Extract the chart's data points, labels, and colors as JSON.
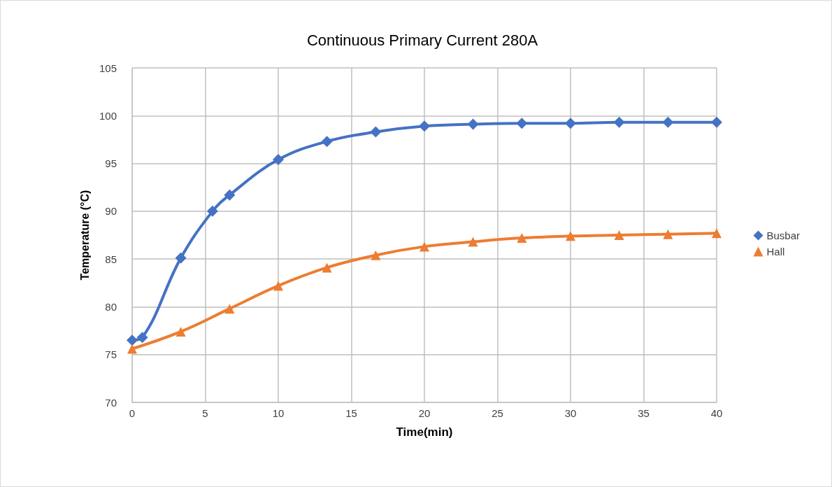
{
  "chart_data": {
    "type": "line",
    "title": "Continuous Primary Current 280A",
    "xlabel": "Time(min)",
    "ylabel": "Temperature (°C)",
    "series": [
      {
        "name": "Busbar",
        "color": "#4472c4",
        "marker": "diamond",
        "x": [
          0,
          0.7,
          3.33,
          5.5,
          6.67,
          10,
          13.33,
          16.67,
          20,
          23.33,
          26.67,
          30,
          33.33,
          36.67,
          40
        ],
        "values": [
          76.5,
          76.8,
          85.1,
          90.0,
          91.7,
          95.4,
          97.3,
          98.3,
          98.9,
          99.1,
          99.2,
          99.2,
          99.3,
          99.3,
          99.3
        ]
      },
      {
        "name": "Hall",
        "color": "#ed7d31",
        "marker": "triangle",
        "x": [
          0,
          3.33,
          6.67,
          10,
          13.33,
          16.67,
          20,
          23.33,
          26.67,
          30,
          33.33,
          36.67,
          40
        ],
        "values": [
          75.6,
          77.4,
          79.8,
          82.2,
          84.1,
          85.4,
          86.3,
          86.8,
          87.2,
          87.4,
          87.5,
          87.6,
          87.7
        ]
      }
    ],
    "xlim": [
      0,
      40
    ],
    "xticks": [
      0,
      5,
      10,
      15,
      20,
      25,
      30,
      35,
      40
    ],
    "ylim": [
      70,
      105
    ],
    "yticks": [
      70,
      75,
      80,
      85,
      90,
      95,
      100,
      105
    ],
    "grid": true,
    "legend": "right",
    "line_style": "solid"
  }
}
